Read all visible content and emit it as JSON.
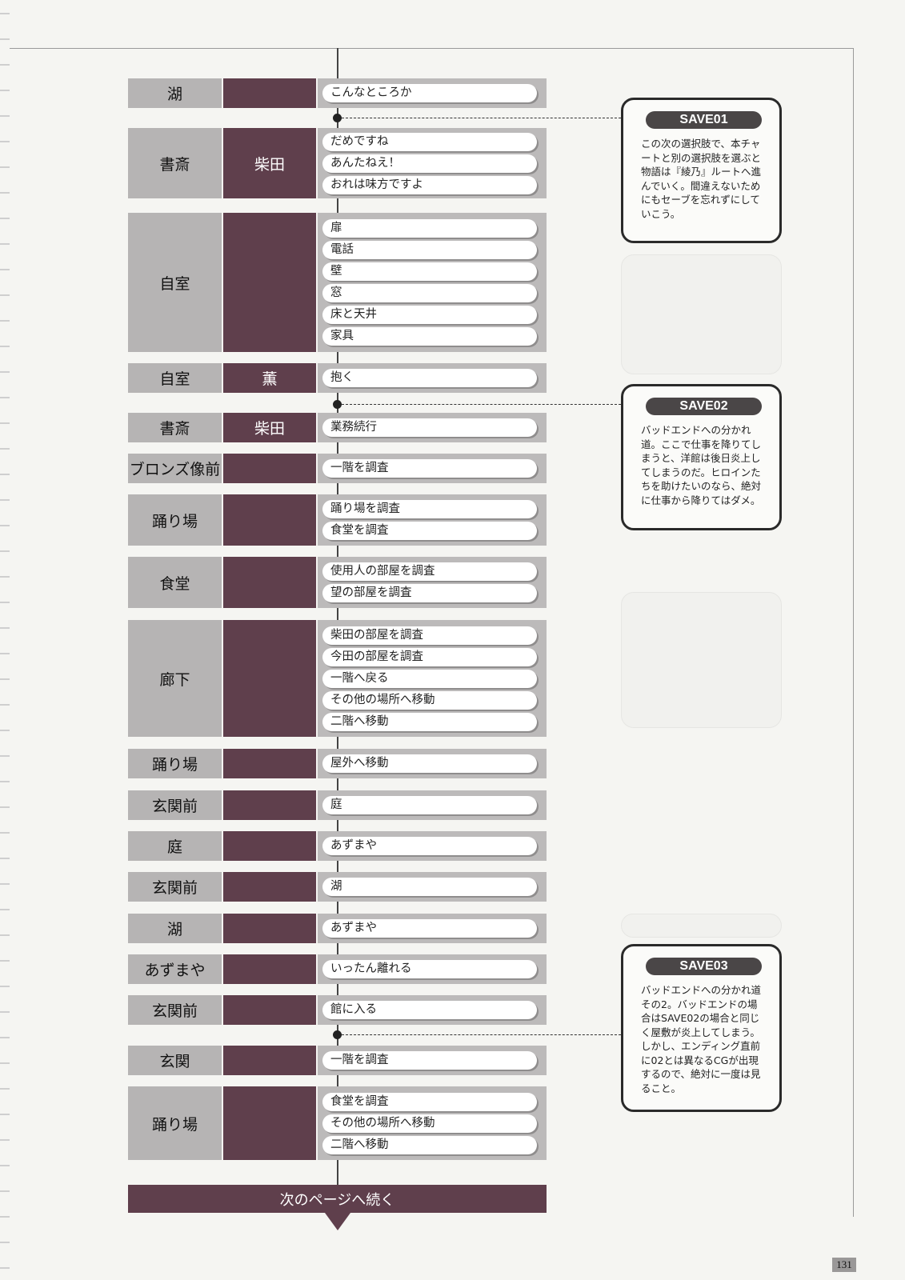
{
  "rows": [
    {
      "location": "湖",
      "character": "",
      "choices": [
        "こんなところか"
      ]
    },
    {
      "location": "書斎",
      "character": "柴田",
      "choices": [
        "だめですね",
        "あんたねえ！",
        "おれは味方ですよ"
      ]
    },
    {
      "location": "自室",
      "character": "",
      "choices": [
        "扉",
        "電話",
        "壁",
        "窓",
        "床と天井",
        "家具"
      ]
    },
    {
      "location": "自室",
      "character": "薫",
      "choices": [
        "抱く"
      ]
    },
    {
      "location": "書斎",
      "character": "柴田",
      "choices": [
        "業務続行"
      ]
    },
    {
      "location": "ブロンズ像前",
      "character": "",
      "choices": [
        "一階を調査"
      ]
    },
    {
      "location": "踊り場",
      "character": "",
      "choices": [
        "踊り場を調査",
        "食堂を調査"
      ]
    },
    {
      "location": "食堂",
      "character": "",
      "choices": [
        "使用人の部屋を調査",
        "望の部屋を調査"
      ]
    },
    {
      "location": "廊下",
      "character": "",
      "choices": [
        "柴田の部屋を調査",
        "今田の部屋を調査",
        "一階へ戻る",
        "その他の場所へ移動",
        "二階へ移動"
      ]
    },
    {
      "location": "踊り場",
      "character": "",
      "choices": [
        "屋外へ移動"
      ]
    },
    {
      "location": "玄関前",
      "character": "",
      "choices": [
        "庭"
      ]
    },
    {
      "location": "庭",
      "character": "",
      "choices": [
        "あずまや"
      ]
    },
    {
      "location": "玄関前",
      "character": "",
      "choices": [
        "湖"
      ]
    },
    {
      "location": "湖",
      "character": "",
      "choices": [
        "あずまや"
      ]
    },
    {
      "location": "あずまや",
      "character": "",
      "choices": [
        "いったん離れる"
      ]
    },
    {
      "location": "玄関前",
      "character": "",
      "choices": [
        "館に入る"
      ]
    },
    {
      "location": "玄関",
      "character": "",
      "choices": [
        "一階を調査"
      ]
    },
    {
      "location": "踊り場",
      "character": "",
      "choices": [
        "食堂を調査",
        "その他の場所へ移動",
        "二階へ移動"
      ]
    }
  ],
  "saves": [
    {
      "title": "SAVE01",
      "text": "この次の選択肢で、本チャートと別の選択肢を選ぶと物語は『綾乃』ルートへ進んでいく。間違えないためにもセーブを忘れずにしていこう。"
    },
    {
      "title": "SAVE02",
      "text": "バッドエンドへの分かれ道。ここで仕事を降りてしまうと、洋館は後日炎上してしまうのだ。ヒロインたちを助けたいのなら、絶対に仕事から降りてはダメ。"
    },
    {
      "title": "SAVE03",
      "text": "バッドエンドへの分かれ道その2。バッドエンドの場合はSAVE02の場合と同じく屋敷が炎上してしまう。しかし、エンディング直前に02とは異なるCGが出現するので、絶対に一度は見ること。"
    }
  ],
  "footer": "次のページへ続く",
  "page_number": "131"
}
